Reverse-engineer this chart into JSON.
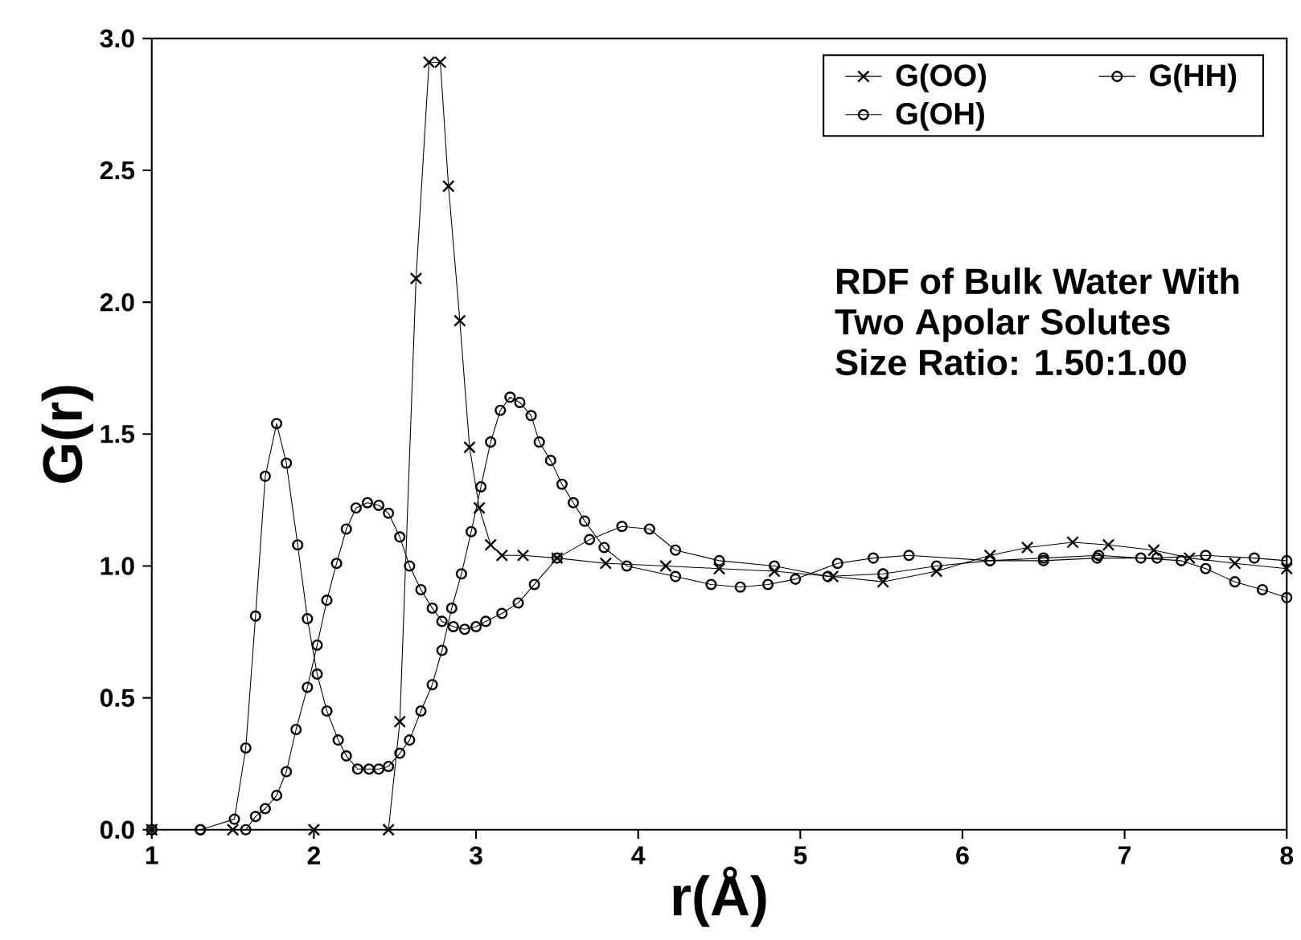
{
  "chart_data": {
    "type": "line",
    "xlabel": "r(Å)",
    "ylabel": "G(r)",
    "annotations": [
      "RDF of Bulk Water With",
      "Two Apolar Solutes",
      "Size Ratio: 1.50:1.00"
    ],
    "xlim": [
      1,
      8
    ],
    "ylim": [
      0,
      3
    ],
    "xticks": [
      1,
      2,
      3,
      4,
      5,
      6,
      7,
      8
    ],
    "yticks": [
      {
        "value": 0,
        "label": "0.0"
      },
      {
        "value": 0.5,
        "label": "0.5"
      },
      {
        "value": 1,
        "label": "1.0"
      },
      {
        "value": 1.5,
        "label": "1.5"
      },
      {
        "value": 2,
        "label": "2.0"
      },
      {
        "value": 2.5,
        "label": "2.5"
      },
      {
        "value": 3,
        "label": "3.0"
      }
    ],
    "grid": false,
    "legend": "top right",
    "series": [
      {
        "name": "G(OO)",
        "color": "#000000",
        "marker": "cross",
        "x": [
          1,
          1.5,
          2,
          2.46,
          2.53,
          2.63,
          2.71,
          2.78,
          2.83,
          2.9,
          2.96,
          3.02,
          3.09,
          3.16,
          3.29,
          3.5,
          3.8,
          4.17,
          4.5,
          4.84,
          5.2,
          5.51,
          5.84,
          6.17,
          6.4,
          6.68,
          6.9,
          7.18,
          7.4,
          7.68,
          8
        ],
        "values": [
          0,
          0,
          0,
          0,
          0.41,
          2.09,
          2.91,
          2.91,
          2.44,
          1.93,
          1.45,
          1.22,
          1.08,
          1.04,
          1.04,
          1.03,
          1.01,
          1,
          0.99,
          0.98,
          0.96,
          0.94,
          0.98,
          1.04,
          1.07,
          1.09,
          1.08,
          1.06,
          1.03,
          1.01,
          0.99
        ]
      },
      {
        "name": "G(HH)",
        "color": "#000000",
        "marker": "circle",
        "x": [
          1,
          1.3,
          1.58,
          1.64,
          1.7,
          1.77,
          1.83,
          1.89,
          1.96,
          2.02,
          2.08,
          2.14,
          2.2,
          2.26,
          2.33,
          2.4,
          2.46,
          2.53,
          2.59,
          2.66,
          2.73,
          2.79,
          2.86,
          2.93,
          3,
          3.06,
          3.16,
          3.26,
          3.36,
          3.5,
          3.7,
          3.9,
          4.07,
          4.23,
          4.5,
          4.84,
          5.17,
          5.51,
          5.84,
          6.17,
          6.5,
          6.84,
          7.1,
          7.35,
          7.5,
          7.68,
          7.85,
          8
        ],
        "values": [
          0,
          0,
          0,
          0.05,
          0.08,
          0.13,
          0.22,
          0.38,
          0.54,
          0.7,
          0.87,
          1.01,
          1.14,
          1.22,
          1.24,
          1.23,
          1.2,
          1.11,
          1,
          0.91,
          0.84,
          0.79,
          0.77,
          0.76,
          0.77,
          0.79,
          0.82,
          0.86,
          0.93,
          1.03,
          1.1,
          1.15,
          1.14,
          1.06,
          1.02,
          1,
          0.96,
          0.97,
          1,
          1.02,
          1.03,
          1.04,
          1.03,
          1.02,
          0.99,
          0.94,
          0.91,
          0.88
        ]
      },
      {
        "name": "G(OH)",
        "color": "#000000",
        "marker": "circle",
        "x": [
          1,
          1.3,
          1.51,
          1.58,
          1.64,
          1.7,
          1.77,
          1.83,
          1.9,
          1.96,
          2.02,
          2.08,
          2.15,
          2.2,
          2.27,
          2.34,
          2.4,
          2.46,
          2.53,
          2.59,
          2.66,
          2.73,
          2.79,
          2.85,
          2.91,
          2.97,
          3.03,
          3.09,
          3.15,
          3.21,
          3.27,
          3.34,
          3.39,
          3.46,
          3.53,
          3.6,
          3.67,
          3.79,
          3.93,
          4.23,
          4.45,
          4.63,
          4.8,
          4.97,
          5.23,
          5.45,
          5.67,
          6.17,
          6.5,
          6.83,
          7.2,
          7.5,
          7.8,
          8
        ],
        "values": [
          0,
          0,
          0.04,
          0.31,
          0.81,
          1.34,
          1.54,
          1.39,
          1.08,
          0.8,
          0.59,
          0.45,
          0.34,
          0.28,
          0.23,
          0.23,
          0.23,
          0.24,
          0.29,
          0.34,
          0.45,
          0.55,
          0.68,
          0.84,
          0.97,
          1.13,
          1.3,
          1.47,
          1.59,
          1.64,
          1.62,
          1.57,
          1.47,
          1.4,
          1.31,
          1.24,
          1.17,
          1.07,
          1,
          0.96,
          0.93,
          0.92,
          0.93,
          0.95,
          1.01,
          1.03,
          1.04,
          1.02,
          1.02,
          1.03,
          1.03,
          1.04,
          1.03,
          1.02
        ]
      }
    ]
  }
}
